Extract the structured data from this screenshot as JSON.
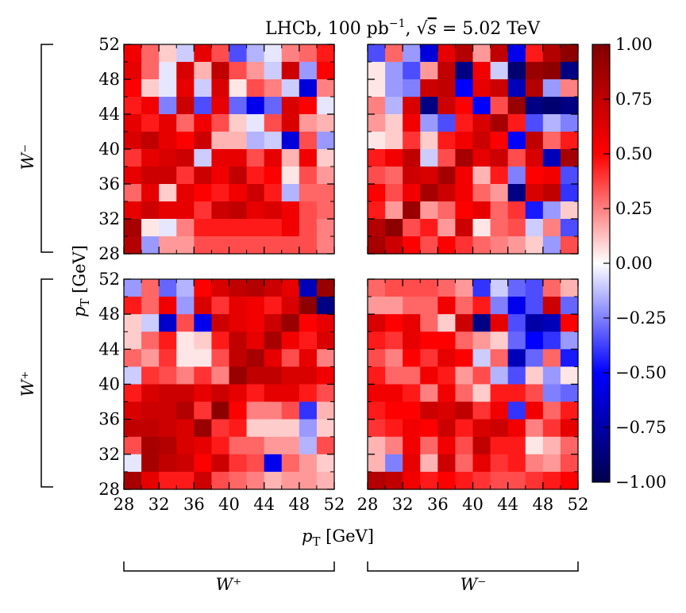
{
  "chart_data": {
    "type": "heatmap",
    "title": "LHCb, 100 pb⁻¹, √s = 5.02 TeV",
    "title_parts": {
      "experiment": "LHCb, 100 pb",
      "lumi_exp": "−1",
      "sep": ", ",
      "sqrt": "√",
      "s": "s",
      "energy": " = 5.02 TeV"
    },
    "xlabel": "pT [GeV]",
    "ylabel": "pT [GeV]",
    "axis_label_parts": {
      "p": "p",
      "sub": "T",
      "unit": " [GeV]"
    },
    "bin_edges": [
      28,
      30,
      32,
      34,
      36,
      38,
      40,
      42,
      44,
      46,
      48,
      50,
      52
    ],
    "tick_labels": [
      "28",
      "32",
      "36",
      "40",
      "44",
      "48",
      "52"
    ],
    "colorbar": {
      "range": [
        -1.0,
        1.0
      ],
      "ticks": [
        "1.00",
        "0.75",
        "0.50",
        "0.25",
        "0.00",
        "−0.25",
        "−0.50",
        "−0.75",
        "−1.00"
      ],
      "tick_values": [
        1.0,
        0.75,
        0.5,
        0.25,
        0.0,
        -0.25,
        -0.5,
        -0.75,
        -1.0
      ],
      "colormap": "seismic",
      "low_color": "#00004d",
      "mid_color": "#ffffff",
      "high_color": "#800000"
    },
    "group_labels": {
      "rows": [
        "W⁻",
        "W⁺"
      ],
      "columns": [
        "W⁺",
        "W⁻"
      ]
    },
    "panels": [
      {
        "name": "row W⁻ / column W⁺",
        "row_group": "W⁻",
        "col_group": "W⁺",
        "values_top_to_bottom": [
          [
            0.55,
            0.3,
            0.1,
            -0.1,
            0.6,
            0.35,
            -0.35,
            -0.15,
            -0.05,
            0.25,
            0.3,
            0.45
          ],
          [
            0.6,
            0.3,
            -0.05,
            0.65,
            0.15,
            0.75,
            0.35,
            0.2,
            -0.1,
            0.7,
            -0.2,
            0.5
          ],
          [
            0.5,
            0.1,
            -0.05,
            0.6,
            -0.1,
            0.65,
            0.05,
            0.35,
            0.25,
            -0.1,
            -0.6,
            0.25
          ],
          [
            0.45,
            0.55,
            -0.25,
            0.7,
            -0.35,
            0.6,
            -0.3,
            -0.55,
            -0.3,
            0.65,
            0.5,
            -0.05
          ],
          [
            0.6,
            0.45,
            0.6,
            0.3,
            0.55,
            0.35,
            0.1,
            -0.05,
            0.35,
            0.65,
            0.2,
            0.15
          ],
          [
            0.65,
            0.75,
            0.6,
            0.5,
            0.7,
            0.15,
            0.15,
            -0.15,
            -0.1,
            -0.6,
            0.35,
            -0.2
          ],
          [
            0.4,
            0.6,
            0.65,
            0.7,
            -0.1,
            0.6,
            0.6,
            0.35,
            0.6,
            0.15,
            0.55,
            0.1
          ],
          [
            0.6,
            0.7,
            0.7,
            0.4,
            0.7,
            0.55,
            0.75,
            0.45,
            0.5,
            0.05,
            0.35,
            0.2
          ],
          [
            0.3,
            0.6,
            0.1,
            0.6,
            0.5,
            0.45,
            0.55,
            0.7,
            0.45,
            -0.15,
            0.3,
            0.3
          ],
          [
            0.6,
            0.7,
            0.6,
            0.6,
            0.4,
            0.7,
            0.75,
            0.6,
            0.65,
            0.55,
            0.35,
            0.3
          ],
          [
            0.85,
            0.05,
            -0.05,
            0.25,
            0.45,
            0.45,
            0.45,
            0.45,
            0.45,
            0.55,
            0.35,
            0.25
          ],
          [
            0.8,
            -0.2,
            0.2,
            0.2,
            0.35,
            0.35,
            0.35,
            0.35,
            0.35,
            0.35,
            0.35,
            0.25
          ]
        ]
      },
      {
        "name": "row W⁻ / column W⁻",
        "row_group": "W⁻",
        "col_group": "W⁻",
        "values_top_to_bottom": [
          [
            -0.35,
            0.3,
            -0.2,
            -0.6,
            0.6,
            0.8,
            0.2,
            0.75,
            -0.55,
            0.45,
            0.8,
            0.95
          ],
          [
            0.05,
            -0.2,
            -0.35,
            0.2,
            0.75,
            -0.85,
            0.55,
            -0.1,
            -0.9,
            0.9,
            0.95,
            -0.85
          ],
          [
            0.05,
            -0.2,
            -0.25,
            0.7,
            0.75,
            -0.5,
            0.6,
            0.7,
            -0.7,
            0.8,
            -0.2,
            0.25
          ],
          [
            0.25,
            -0.15,
            0.65,
            -0.85,
            0.7,
            0.5,
            -0.5,
            0.35,
            0.9,
            -0.85,
            -0.9,
            -0.85
          ],
          [
            0.2,
            0.1,
            0.55,
            -0.2,
            -0.35,
            0.45,
            0.65,
            0.85,
            0.45,
            -0.35,
            -0.15,
            -0.25
          ],
          [
            0.05,
            0.1,
            0.4,
            0.1,
            0.45,
            0.55,
            0.7,
            0.5,
            -0.5,
            0.75,
            0.3,
            0.45
          ],
          [
            0.45,
            0.55,
            0.75,
            -0.1,
            0.35,
            0.85,
            0.6,
            0.7,
            0.35,
            0.65,
            -0.7,
            0.85
          ],
          [
            0.35,
            0.3,
            0.7,
            0.65,
            0.85,
            0.55,
            0.15,
            0.45,
            -0.25,
            0.5,
            0.55,
            -0.35
          ],
          [
            0.5,
            0.35,
            0.55,
            0.85,
            0.7,
            0.55,
            0.3,
            0.2,
            -0.85,
            0.65,
            0.75,
            -0.4
          ],
          [
            0.45,
            0.2,
            0.9,
            0.2,
            0.3,
            0.5,
            0.6,
            0.3,
            0.4,
            -0.45,
            -0.2,
            0.1
          ],
          [
            0.8,
            0.95,
            0.35,
            0.45,
            0.2,
            0.7,
            0.05,
            0.3,
            0.35,
            -0.1,
            0.25,
            -0.35
          ],
          [
            0.85,
            0.7,
            0.5,
            0.35,
            0.5,
            0.4,
            0.3,
            0.25,
            0.2,
            0.1,
            -0.2,
            0.35
          ]
        ]
      },
      {
        "name": "row W⁺ / column W⁺",
        "row_group": "W⁺",
        "col_group": "W⁺",
        "values_top_to_bottom": [
          [
            -0.2,
            0.3,
            -0.3,
            -0.15,
            0.5,
            0.65,
            0.75,
            0.8,
            0.7,
            0.6,
            -0.7,
            0.9
          ],
          [
            0.45,
            0.3,
            0.55,
            -0.2,
            0.65,
            0.4,
            0.6,
            0.55,
            0.45,
            0.65,
            0.95,
            -0.85
          ],
          [
            0.1,
            -0.1,
            -0.65,
            0.35,
            -0.55,
            0.7,
            0.6,
            0.55,
            0.7,
            0.9,
            0.5,
            0.6
          ],
          [
            0.1,
            0.3,
            0.45,
            0.05,
            0.1,
            0.45,
            0.75,
            0.6,
            0.85,
            0.55,
            0.45,
            0.65
          ],
          [
            0.3,
            0.2,
            0.4,
            0.05,
            0.05,
            0.35,
            0.75,
            0.85,
            0.6,
            0.35,
            0.6,
            0.25
          ],
          [
            -0.1,
            0.4,
            0.35,
            0.25,
            0.4,
            0.25,
            0.9,
            0.75,
            0.75,
            0.65,
            0.65,
            0.55
          ],
          [
            0.45,
            0.65,
            0.7,
            0.7,
            0.6,
            0.7,
            0.6,
            0.45,
            0.6,
            0.6,
            0.45,
            0.35
          ],
          [
            0.65,
            0.7,
            0.7,
            0.8,
            0.4,
            0.95,
            0.5,
            0.25,
            0.25,
            0.35,
            -0.4,
            0.15
          ],
          [
            0.75,
            0.75,
            0.7,
            0.65,
            0.9,
            0.4,
            0.45,
            0.1,
            0.1,
            0.1,
            -0.2,
            0.1
          ],
          [
            0.35,
            0.85,
            0.8,
            0.65,
            0.6,
            0.45,
            0.3,
            0.3,
            0.2,
            0.2,
            -0.15,
            0.35
          ],
          [
            -0.05,
            0.85,
            0.75,
            0.7,
            0.5,
            0.7,
            0.4,
            0.35,
            -0.55,
            0.3,
            0.2,
            0.1
          ],
          [
            0.85,
            0.6,
            0.45,
            0.45,
            0.7,
            0.35,
            0.3,
            0.25,
            0.15,
            0.2,
            0.2,
            0.15
          ]
        ]
      },
      {
        "name": "row W⁺ / column W⁻",
        "row_group": "W⁺",
        "col_group": "W⁻",
        "values_top_to_bottom": [
          [
            0.3,
            0.35,
            0.35,
            0.35,
            0.3,
            0.2,
            -0.4,
            -0.1,
            -0.3,
            -0.35,
            0.3,
            0.15
          ],
          [
            0.2,
            0.2,
            0.3,
            0.3,
            0.55,
            0.3,
            0.45,
            -0.25,
            -0.55,
            -0.35,
            0.7,
            -0.3
          ],
          [
            0.65,
            0.5,
            0.6,
            0.3,
            0.1,
            0.7,
            -0.85,
            0.6,
            -0.35,
            -0.75,
            -0.7,
            0.5
          ],
          [
            0.45,
            0.4,
            0.6,
            0.5,
            0.5,
            0.3,
            0.2,
            0.1,
            -0.3,
            -0.5,
            -0.4,
            -0.2
          ],
          [
            0.35,
            0.25,
            0.5,
            0.4,
            0.6,
            0.5,
            -0.1,
            0.3,
            -0.7,
            -0.3,
            0.3,
            -0.45
          ],
          [
            0.45,
            0.3,
            0.3,
            0.55,
            0.45,
            0.2,
            0.35,
            -0.15,
            -0.35,
            0.1,
            -0.2,
            0.05
          ],
          [
            0.55,
            0.55,
            0.45,
            0.25,
            0.55,
            0.3,
            0.1,
            0.45,
            0.45,
            0.35,
            -0.25,
            -0.3
          ],
          [
            0.45,
            0.5,
            0.5,
            0.7,
            0.65,
            0.75,
            0.4,
            0.55,
            -0.4,
            0.55,
            0.3,
            0.45
          ],
          [
            0.4,
            0.45,
            0.55,
            0.5,
            0.7,
            0.45,
            0.65,
            0.7,
            0.55,
            0.25,
            0.4,
            0.6
          ],
          [
            0.15,
            0.25,
            0.55,
            0.3,
            0.55,
            0.35,
            0.75,
            0.45,
            0.45,
            0.05,
            0.15,
            0.3
          ],
          [
            0.15,
            -0.25,
            0.6,
            0.15,
            0.7,
            0.3,
            0.6,
            0.4,
            0.45,
            0.25,
            0.2,
            0.35
          ],
          [
            0.8,
            0.75,
            0.55,
            0.45,
            0.5,
            0.45,
            0.4,
            0.35,
            0.35,
            0.4,
            0.45,
            0.5
          ]
        ]
      }
    ]
  }
}
